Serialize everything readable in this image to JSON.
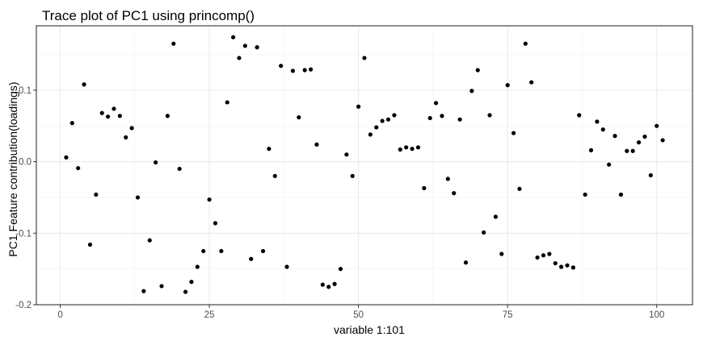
{
  "chart_data": {
    "type": "scatter",
    "title": "Trace plot of PC1 using princomp()",
    "xlabel": "variable 1:101",
    "ylabel": "PC1 Feature contribution(loadings)",
    "xlim": [
      -4,
      106
    ],
    "ylim": [
      -0.2,
      0.19
    ],
    "x_ticks": [
      0,
      25,
      50,
      75,
      100
    ],
    "x_tick_labels": [
      "0",
      "25",
      "50",
      "75",
      "100"
    ],
    "y_ticks": [
      -0.2,
      -0.1,
      0.0,
      0.1
    ],
    "y_tick_labels": [
      "-0.2",
      "-0.1",
      "0.0",
      "0.1"
    ],
    "grid": true,
    "theme": "bw",
    "x": [
      1,
      2,
      3,
      4,
      5,
      6,
      7,
      8,
      9,
      10,
      11,
      12,
      13,
      14,
      15,
      16,
      17,
      18,
      19,
      20,
      21,
      22,
      23,
      24,
      25,
      26,
      27,
      28,
      29,
      30,
      31,
      32,
      33,
      34,
      35,
      36,
      37,
      38,
      39,
      40,
      41,
      42,
      43,
      44,
      45,
      46,
      47,
      48,
      49,
      50,
      51,
      52,
      53,
      54,
      55,
      56,
      57,
      58,
      59,
      60,
      61,
      62,
      63,
      64,
      65,
      66,
      67,
      68,
      69,
      70,
      71,
      72,
      73,
      74,
      75,
      76,
      77,
      78,
      79,
      80,
      81,
      82,
      83,
      84,
      85,
      86,
      87,
      88,
      89,
      90,
      91,
      92,
      93,
      94,
      95,
      96,
      97,
      98,
      99,
      100,
      101
    ],
    "y": [
      0.006,
      0.054,
      -0.009,
      0.108,
      -0.116,
      -0.046,
      0.068,
      0.063,
      0.074,
      0.064,
      0.034,
      0.047,
      -0.05,
      -0.181,
      -0.11,
      -0.001,
      -0.174,
      0.064,
      0.165,
      -0.01,
      -0.182,
      -0.168,
      -0.147,
      -0.125,
      -0.053,
      -0.086,
      -0.125,
      0.083,
      0.174,
      0.145,
      0.162,
      -0.136,
      0.16,
      -0.125,
      0.018,
      -0.02,
      0.134,
      -0.147,
      0.127,
      0.062,
      0.128,
      0.129,
      0.024,
      -0.172,
      -0.175,
      -0.171,
      -0.15,
      0.01,
      -0.02,
      0.077,
      0.145,
      0.038,
      0.048,
      0.057,
      0.059,
      0.065,
      0.017,
      0.02,
      0.018,
      0.02,
      -0.037,
      0.061,
      0.082,
      0.064,
      -0.024,
      -0.044,
      0.059,
      -0.141,
      0.099,
      0.128,
      -0.099,
      0.065,
      -0.077,
      -0.129,
      0.107,
      0.04,
      -0.038,
      0.165,
      0.111,
      -0.134,
      -0.131,
      -0.129,
      -0.142,
      -0.147,
      -0.145,
      -0.148,
      0.065,
      -0.046,
      0.016,
      0.056,
      0.045,
      -0.004,
      0.036,
      -0.046,
      0.015,
      0.015,
      0.027,
      0.035,
      -0.019,
      0.05,
      0.03
    ]
  }
}
